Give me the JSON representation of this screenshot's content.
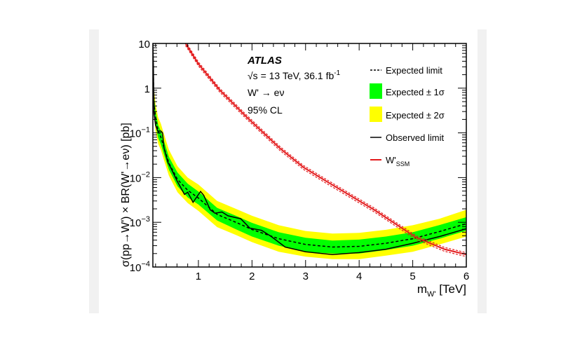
{
  "chart_data": {
    "type": "line",
    "title": "",
    "xlabel": "m_W' [TeV]",
    "xlabel_main": "m",
    "xlabel_sub": "W'",
    "xlabel_unit": " [TeV]",
    "ylabel": "σ(pp→W') × BR(W'→eν) [pb]",
    "xlim": [
      0.15,
      6
    ],
    "ylim": [
      0.0001,
      10
    ],
    "yscale": "log",
    "grid": false,
    "legend_placement": "top-right",
    "x_ticks": [
      "1",
      "2",
      "3",
      "4",
      "5",
      "6"
    ],
    "y_ticks": [
      {
        "base": "10",
        "exp": ""
      },
      {
        "base": "1",
        "exp": ""
      },
      {
        "base": "10",
        "exp": "−1"
      },
      {
        "base": "10",
        "exp": "−2"
      },
      {
        "base": "10",
        "exp": "−3"
      },
      {
        "base": "10",
        "exp": "−4"
      }
    ],
    "annotations": {
      "experiment": "ATLAS",
      "energy": "√s = 13 TeV, 36.1 fb",
      "energy_sup": "-1",
      "channel": "W' → eν",
      "cl": "95% CL"
    },
    "legend": {
      "expected": "Expected limit",
      "one_sigma": "Expected ± 1σ",
      "two_sigma": "Expected ± 2σ",
      "observed": "Observed limit",
      "ssm_main": "W'",
      "ssm_sub": "SSM"
    },
    "colors": {
      "one_sigma": "#00ff00",
      "two_sigma": "#ffff00",
      "observed": "#000000",
      "expected": "#000000",
      "ssm": "#e31a1c"
    },
    "band_x": [
      0.15,
      0.17,
      0.2,
      0.25,
      0.3,
      0.35,
      0.45,
      0.61,
      0.8,
      1.0,
      1.35,
      1.7,
      2.0,
      2.5,
      3.0,
      3.5,
      4.0,
      4.5,
      5.0,
      5.5,
      6.0
    ],
    "expected": [
      7.9,
      0.5,
      0.22,
      0.11,
      0.079,
      0.05,
      0.021,
      0.0091,
      0.0052,
      0.0035,
      0.0015,
      0.001,
      0.00069,
      0.00043,
      0.00032,
      0.00028,
      0.00029,
      0.00034,
      0.00043,
      0.00062,
      0.00093
    ],
    "one_sigma_up": [
      11,
      0.7,
      0.31,
      0.15,
      0.11,
      0.07,
      0.029,
      0.013,
      0.0073,
      0.0049,
      0.0021,
      0.0014,
      0.00097,
      0.0006,
      0.00045,
      0.00039,
      0.00041,
      0.00048,
      0.0006,
      0.00087,
      0.0013
    ],
    "one_sigma_down": [
      5.5,
      0.35,
      0.15,
      0.077,
      0.055,
      0.035,
      0.015,
      0.0064,
      0.0036,
      0.0025,
      0.0011,
      0.0007,
      0.00048,
      0.0003,
      0.00022,
      0.0002,
      0.0002,
      0.00024,
      0.0003,
      0.00043,
      0.00065
    ],
    "two_sigma_up": [
      16,
      1.0,
      0.44,
      0.22,
      0.16,
      0.1,
      0.042,
      0.018,
      0.01,
      0.007,
      0.003,
      0.002,
      0.0014,
      0.00086,
      0.00064,
      0.00056,
      0.00058,
      0.00068,
      0.00086,
      0.0012,
      0.0019
    ],
    "two_sigma_down": [
      4.1,
      0.26,
      0.11,
      0.057,
      0.041,
      0.026,
      0.011,
      0.0047,
      0.0027,
      0.0018,
      0.00078,
      0.00052,
      0.00036,
      0.00022,
      0.00017,
      0.00015,
      0.00015,
      0.00018,
      0.00022,
      0.00032,
      0.00048
    ],
    "observed": {
      "x": [
        0.15,
        0.16,
        0.17,
        0.2,
        0.24,
        0.3,
        0.33,
        0.36,
        0.43,
        0.48,
        0.6,
        0.74,
        0.8,
        0.9,
        1.04,
        1.1,
        1.22,
        1.31,
        1.44,
        1.55,
        1.66,
        1.79,
        1.96,
        2.18,
        2.36,
        2.62,
        3.0,
        3.5,
        4.0,
        4.5,
        5.0,
        5.5,
        6.0
      ],
      "y": [
        10,
        3,
        0.28,
        0.15,
        0.11,
        0.11,
        0.1,
        0.045,
        0.022,
        0.017,
        0.0085,
        0.0042,
        0.0047,
        0.0028,
        0.0049,
        0.004,
        0.0019,
        0.0016,
        0.0017,
        0.0014,
        0.0013,
        0.0012,
        0.00074,
        0.00066,
        0.00048,
        0.00028,
        0.00022,
        0.00019,
        0.00021,
        0.00025,
        0.00034,
        0.00048,
        0.00072
      ]
    },
    "ssm": {
      "x": [
        0.76,
        1.0,
        1.4,
        1.91,
        2.53,
        2.96,
        3.4,
        4.28,
        5.06,
        5.59,
        6.0
      ],
      "y": [
        10,
        3.5,
        0.9,
        0.22,
        0.044,
        0.017,
        0.0081,
        0.0019,
        0.00046,
        0.00025,
        0.00019
      ],
      "band_fraction": 0.1
    }
  }
}
